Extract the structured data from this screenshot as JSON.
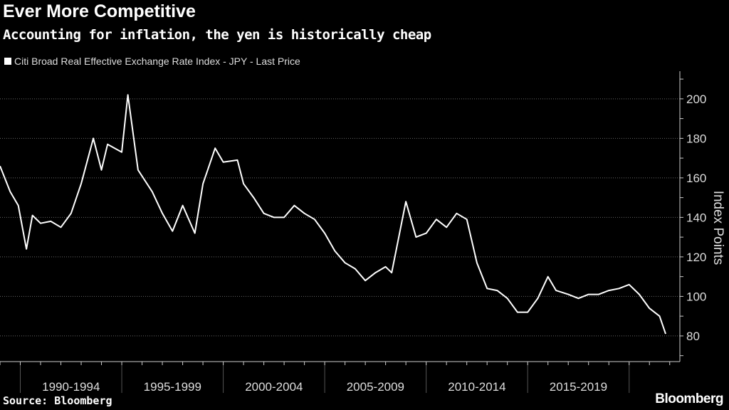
{
  "chart_data": {
    "type": "line",
    "title": "Ever More Competitive",
    "subtitle": "Accounting for inflation, the yen is historically cheap",
    "ylabel": "Index Points",
    "xlabel": "",
    "ylim": [
      67,
      214
    ],
    "xlim": [
      1989.0,
      2022.5
    ],
    "grid": true,
    "legend_position": "top-left",
    "y_ticks": [
      80,
      100,
      120,
      140,
      160,
      180,
      200
    ],
    "x_tick_labels": [
      "1990-1994",
      "1995-1999",
      "2000-2004",
      "2005-2009",
      "2010-2014",
      "2015-2019"
    ],
    "series": [
      {
        "name": "Citi Broad Real Effective Exchange Rate Index - JPY - Last Price",
        "color": "#ffffff",
        "x": [
          1989.0,
          1989.5,
          1989.9,
          1990.3,
          1990.6,
          1991.0,
          1991.5,
          1992.0,
          1992.5,
          1993.0,
          1993.6,
          1994.0,
          1994.3,
          1995.0,
          1995.3,
          1995.8,
          1996.5,
          1997.0,
          1997.5,
          1998.0,
          1998.6,
          1999.0,
          1999.6,
          2000.0,
          2000.7,
          2001.0,
          2001.5,
          2002.0,
          2002.5,
          2003.0,
          2003.5,
          2004.0,
          2004.5,
          2005.0,
          2005.5,
          2006.0,
          2006.5,
          2007.0,
          2007.5,
          2008.0,
          2008.3,
          2009.0,
          2009.5,
          2010.0,
          2010.5,
          2011.0,
          2011.5,
          2012.0,
          2012.5,
          2013.0,
          2013.5,
          2014.0,
          2014.5,
          2015.0,
          2015.5,
          2016.0,
          2016.4,
          2017.0,
          2017.5,
          2018.0,
          2018.5,
          2019.0,
          2019.5,
          2020.0,
          2020.5,
          2021.0,
          2021.5,
          2021.8
        ],
        "y": [
          166,
          153,
          146,
          124,
          141,
          137,
          138,
          135,
          142,
          157,
          180,
          164,
          177,
          173,
          202,
          164,
          153,
          142,
          133,
          146,
          132,
          157,
          175,
          168,
          169,
          157,
          150,
          142,
          140,
          140,
          146,
          142,
          139,
          132,
          123,
          117,
          114,
          108,
          112,
          115,
          112,
          148,
          130,
          132,
          139,
          135,
          142,
          139,
          117,
          104,
          103,
          99,
          92,
          92,
          99,
          110,
          103,
          101,
          99,
          101,
          101,
          103,
          104,
          106,
          101,
          94,
          90,
          81
        ]
      }
    ]
  },
  "footer": {
    "source": "Source: Bloomberg",
    "brand": "Bloomberg"
  }
}
